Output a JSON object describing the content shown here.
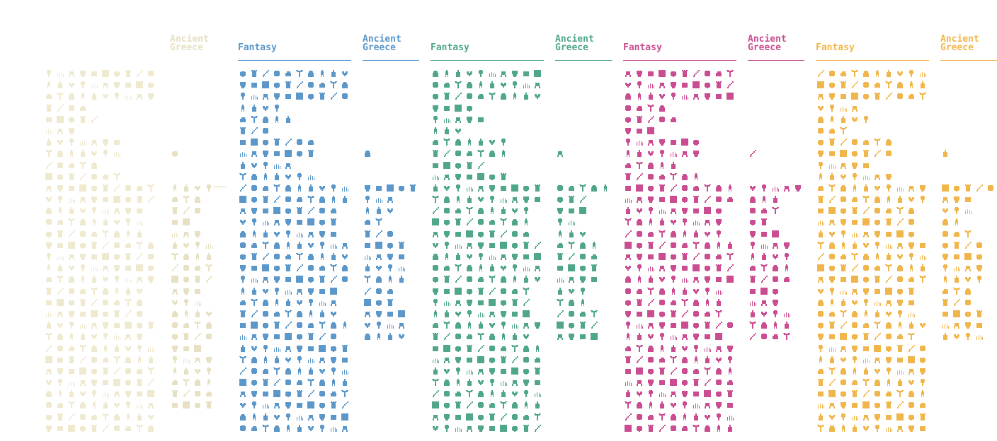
{
  "panels": [
    {
      "id": "ghost-fantasy",
      "title": "",
      "color": "#efe9cf",
      "cols": 10,
      "rows": 32
    },
    {
      "id": "ghost-greece",
      "title": "Ancient\nGreece",
      "color": "#e7e0c2",
      "cols": 4,
      "rows": 32
    },
    {
      "id": "blue-fantasy",
      "title": "Fantasy",
      "color": "#5b97c9",
      "cols": 10,
      "rows": 32
    },
    {
      "id": "blue-greece",
      "title": "Ancient\nGreece",
      "color": "#5b97c9",
      "cols": 5,
      "rows": 24
    },
    {
      "id": "green-fantasy",
      "title": "Fantasy",
      "color": "#4fa787",
      "cols": 10,
      "rows": 32
    },
    {
      "id": "green-greece",
      "title": "Ancient\nGreece",
      "color": "#4fa787",
      "cols": 5,
      "rows": 24
    },
    {
      "id": "pink-fantasy",
      "title": "Fantasy",
      "color": "#c94d90",
      "cols": 10,
      "rows": 32
    },
    {
      "id": "pink-greece",
      "title": "Ancient\nGreece",
      "color": "#c94d90",
      "cols": 5,
      "rows": 24
    },
    {
      "id": "yellow-fantasy",
      "title": "Fantasy",
      "color": "#f0b64b",
      "cols": 10,
      "rows": 32
    },
    {
      "id": "yellow-greece",
      "title": "Ancient\nGreece",
      "color": "#f0b64b",
      "cols": 5,
      "rows": 24
    }
  ],
  "icon_set": "pixel-art sprite sheet (trees, plants, buildings, creatures, characters, weapons, items, potions)"
}
